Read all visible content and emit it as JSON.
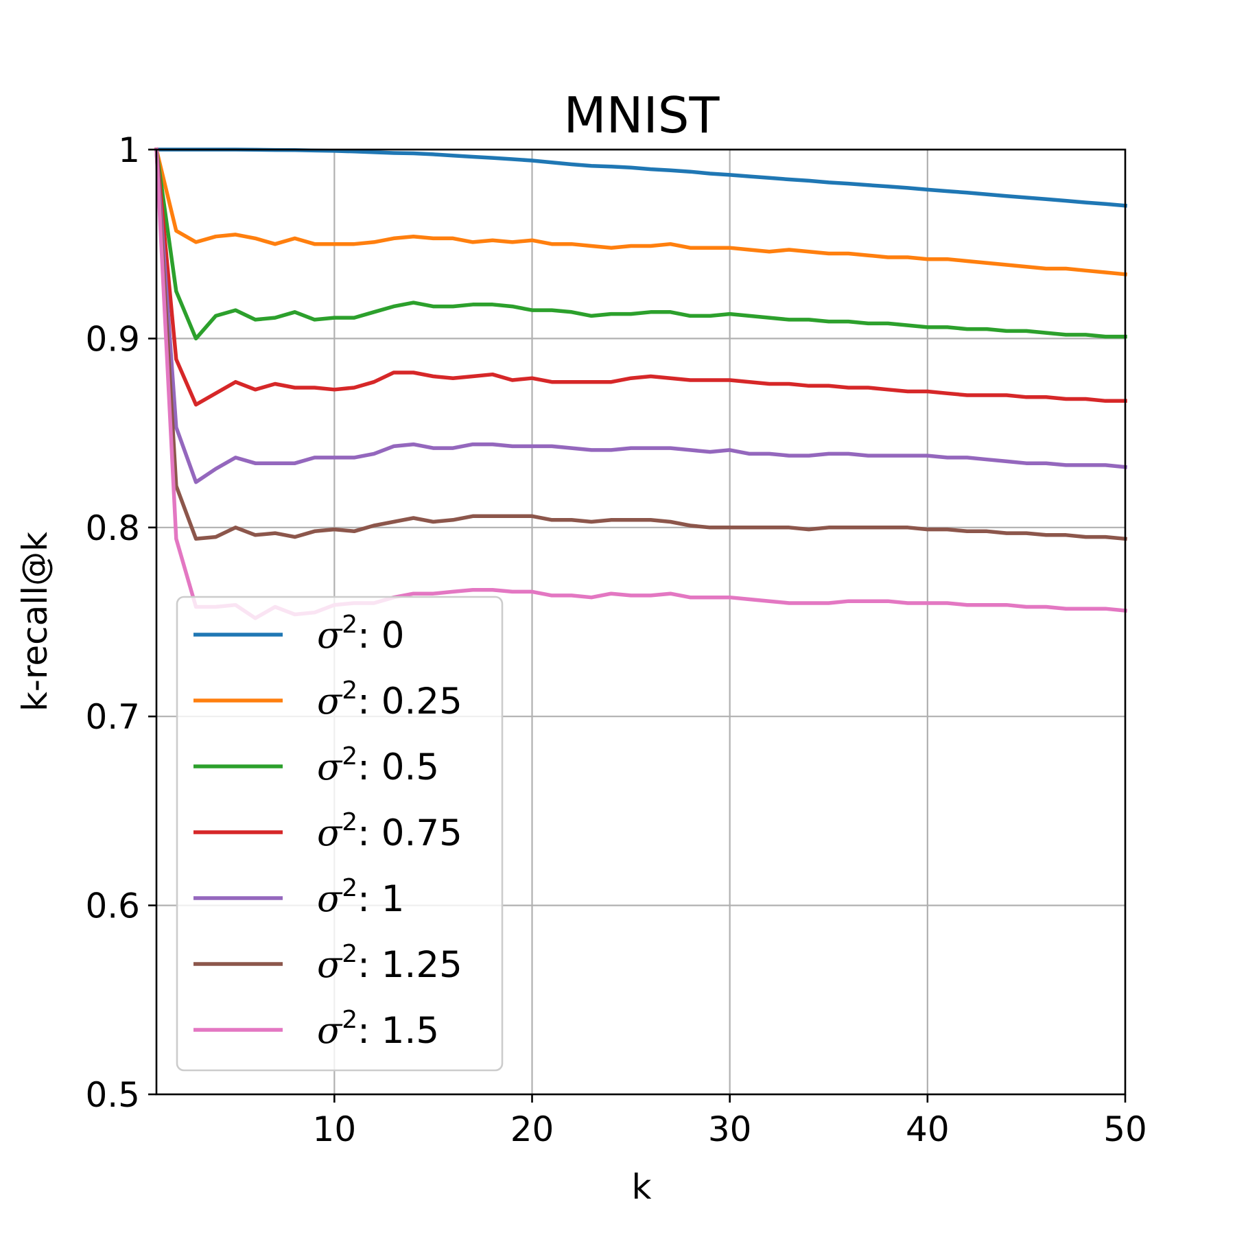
{
  "chart_data": {
    "type": "line",
    "title": "MNIST",
    "xlabel": "k",
    "ylabel": "k-recall@k",
    "xlim": [
      1,
      50
    ],
    "ylim": [
      0.5,
      1.0
    ],
    "x_ticks": [
      10,
      20,
      30,
      40,
      50
    ],
    "x_tick_labels": [
      "10",
      "20",
      "30",
      "40",
      "50"
    ],
    "y_ticks": [
      0.5,
      0.6,
      0.7,
      0.8,
      0.9,
      1.0
    ],
    "y_tick_labels": [
      "0.5",
      "0.6",
      "0.7",
      "0.8",
      "0.9",
      "1"
    ],
    "grid": true,
    "legend_position": "lower-left",
    "legend_prefix": "σ",
    "legend_superscript": "2",
    "legend_separator": ": ",
    "x": [
      1,
      2,
      3,
      4,
      5,
      6,
      7,
      8,
      9,
      10,
      11,
      12,
      13,
      14,
      15,
      16,
      17,
      18,
      19,
      20,
      21,
      22,
      23,
      24,
      25,
      26,
      27,
      28,
      29,
      30,
      31,
      32,
      33,
      34,
      35,
      36,
      37,
      38,
      39,
      40,
      41,
      42,
      43,
      44,
      45,
      46,
      47,
      48,
      49,
      50
    ],
    "series": [
      {
        "name": "0",
        "color": "#1f77b4",
        "values": [
          1.0,
          1.0,
          1.0,
          1.0,
          1.0,
          0.9999,
          0.9998,
          0.9997,
          0.9995,
          0.9993,
          0.999,
          0.9986,
          0.9982,
          0.998,
          0.9975,
          0.9968,
          0.9962,
          0.9956,
          0.9949,
          0.9942,
          0.9932,
          0.9922,
          0.9914,
          0.991,
          0.9905,
          0.9896,
          0.989,
          0.9883,
          0.9873,
          0.9866,
          0.9858,
          0.985,
          0.9842,
          0.9835,
          0.9826,
          0.982,
          0.9812,
          0.9805,
          0.9797,
          0.9788,
          0.978,
          0.9772,
          0.9763,
          0.9754,
          0.9746,
          0.9738,
          0.9729,
          0.972,
          0.9712,
          0.9703
        ]
      },
      {
        "name": "0.25",
        "color": "#ff7f0e",
        "values": [
          1.0,
          0.957,
          0.951,
          0.954,
          0.955,
          0.953,
          0.95,
          0.953,
          0.95,
          0.95,
          0.95,
          0.951,
          0.953,
          0.954,
          0.953,
          0.953,
          0.951,
          0.952,
          0.951,
          0.952,
          0.95,
          0.95,
          0.949,
          0.948,
          0.949,
          0.949,
          0.95,
          0.948,
          0.948,
          0.948,
          0.947,
          0.946,
          0.947,
          0.946,
          0.945,
          0.945,
          0.944,
          0.943,
          0.943,
          0.942,
          0.942,
          0.941,
          0.94,
          0.939,
          0.938,
          0.937,
          0.937,
          0.936,
          0.935,
          0.934
        ]
      },
      {
        "name": "0.5",
        "color": "#2ca02c",
        "values": [
          1.0,
          0.925,
          0.9,
          0.912,
          0.915,
          0.91,
          0.911,
          0.914,
          0.91,
          0.911,
          0.911,
          0.914,
          0.917,
          0.919,
          0.917,
          0.917,
          0.918,
          0.918,
          0.917,
          0.915,
          0.915,
          0.914,
          0.912,
          0.913,
          0.913,
          0.914,
          0.914,
          0.912,
          0.912,
          0.913,
          0.912,
          0.911,
          0.91,
          0.91,
          0.909,
          0.909,
          0.908,
          0.908,
          0.907,
          0.906,
          0.906,
          0.905,
          0.905,
          0.904,
          0.904,
          0.903,
          0.902,
          0.902,
          0.901,
          0.901
        ]
      },
      {
        "name": "0.75",
        "color": "#d62728",
        "values": [
          1.0,
          0.889,
          0.865,
          0.871,
          0.877,
          0.873,
          0.876,
          0.874,
          0.874,
          0.873,
          0.874,
          0.877,
          0.882,
          0.882,
          0.88,
          0.879,
          0.88,
          0.881,
          0.878,
          0.879,
          0.877,
          0.877,
          0.877,
          0.877,
          0.879,
          0.88,
          0.879,
          0.878,
          0.878,
          0.878,
          0.877,
          0.876,
          0.876,
          0.875,
          0.875,
          0.874,
          0.874,
          0.873,
          0.872,
          0.872,
          0.871,
          0.87,
          0.87,
          0.87,
          0.869,
          0.869,
          0.868,
          0.868,
          0.867,
          0.867
        ]
      },
      {
        "name": "1",
        "color": "#9467bd",
        "values": [
          1.0,
          0.853,
          0.824,
          0.831,
          0.837,
          0.834,
          0.834,
          0.834,
          0.837,
          0.837,
          0.837,
          0.839,
          0.843,
          0.844,
          0.842,
          0.842,
          0.844,
          0.844,
          0.843,
          0.843,
          0.843,
          0.842,
          0.841,
          0.841,
          0.842,
          0.842,
          0.842,
          0.841,
          0.84,
          0.841,
          0.839,
          0.839,
          0.838,
          0.838,
          0.839,
          0.839,
          0.838,
          0.838,
          0.838,
          0.838,
          0.837,
          0.837,
          0.836,
          0.835,
          0.834,
          0.834,
          0.833,
          0.833,
          0.833,
          0.832
        ]
      },
      {
        "name": "1.25",
        "color": "#8c564b",
        "values": [
          1.0,
          0.822,
          0.794,
          0.795,
          0.8,
          0.796,
          0.797,
          0.795,
          0.798,
          0.799,
          0.798,
          0.801,
          0.803,
          0.805,
          0.803,
          0.804,
          0.806,
          0.806,
          0.806,
          0.806,
          0.804,
          0.804,
          0.803,
          0.804,
          0.804,
          0.804,
          0.803,
          0.801,
          0.8,
          0.8,
          0.8,
          0.8,
          0.8,
          0.799,
          0.8,
          0.8,
          0.8,
          0.8,
          0.8,
          0.799,
          0.799,
          0.798,
          0.798,
          0.797,
          0.797,
          0.796,
          0.796,
          0.795,
          0.795,
          0.794
        ]
      },
      {
        "name": "1.5",
        "color": "#e377c2",
        "values": [
          1.0,
          0.794,
          0.758,
          0.758,
          0.759,
          0.752,
          0.758,
          0.754,
          0.755,
          0.759,
          0.76,
          0.76,
          0.763,
          0.765,
          0.765,
          0.766,
          0.767,
          0.767,
          0.766,
          0.766,
          0.764,
          0.764,
          0.763,
          0.765,
          0.764,
          0.764,
          0.765,
          0.763,
          0.763,
          0.763,
          0.762,
          0.761,
          0.76,
          0.76,
          0.76,
          0.761,
          0.761,
          0.761,
          0.76,
          0.76,
          0.76,
          0.759,
          0.759,
          0.759,
          0.758,
          0.758,
          0.757,
          0.757,
          0.757,
          0.756
        ]
      }
    ]
  }
}
